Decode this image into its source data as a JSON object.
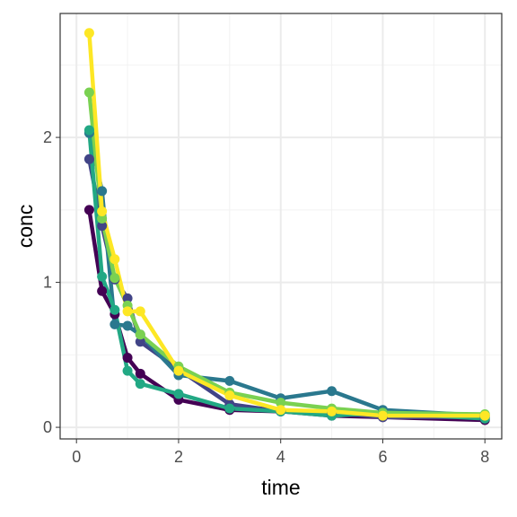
{
  "chart_data": {
    "type": "line",
    "x_label": "time",
    "y_label": "conc",
    "x": [
      0.25,
      0.5,
      0.75,
      1,
      1.25,
      2,
      3,
      4,
      5,
      6,
      8
    ],
    "series": [
      {
        "color": "#440154",
        "values": [
          1.5,
          0.94,
          0.78,
          0.48,
          0.37,
          0.19,
          0.12,
          0.11,
          0.08,
          0.07,
          0.05
        ]
      },
      {
        "color": "#414487",
        "values": [
          1.85,
          1.39,
          1.02,
          0.89,
          0.59,
          0.4,
          0.16,
          0.11,
          0.1,
          0.07,
          0.07
        ]
      },
      {
        "color": "#2A788E",
        "values": [
          2.03,
          1.63,
          0.71,
          0.7,
          0.64,
          0.36,
          0.32,
          0.2,
          0.25,
          0.12,
          0.08
        ]
      },
      {
        "color": "#22A884",
        "values": [
          2.05,
          1.04,
          0.81,
          0.39,
          0.3,
          0.23,
          0.13,
          0.11,
          0.08,
          0.1,
          0.06
        ]
      },
      {
        "color": "#7AD151",
        "values": [
          2.31,
          1.44,
          1.03,
          0.84,
          0.64,
          0.42,
          0.24,
          0.17,
          0.13,
          0.1,
          0.09
        ]
      },
      {
        "color": "#FDE725",
        "values": [
          2.72,
          1.49,
          1.16,
          0.8,
          0.8,
          0.39,
          0.22,
          0.12,
          0.11,
          0.08,
          0.08
        ]
      }
    ],
    "xlim": [
      -0.32,
      8.33
    ],
    "ylim": [
      -0.08,
      2.855
    ],
    "xticks": [
      0,
      2,
      4,
      6,
      8
    ],
    "yticks": [
      0,
      1,
      2
    ],
    "xminor": [
      1,
      3,
      5,
      7
    ],
    "yminor": [
      0.5,
      1.5,
      2.5
    ],
    "grid": true
  }
}
